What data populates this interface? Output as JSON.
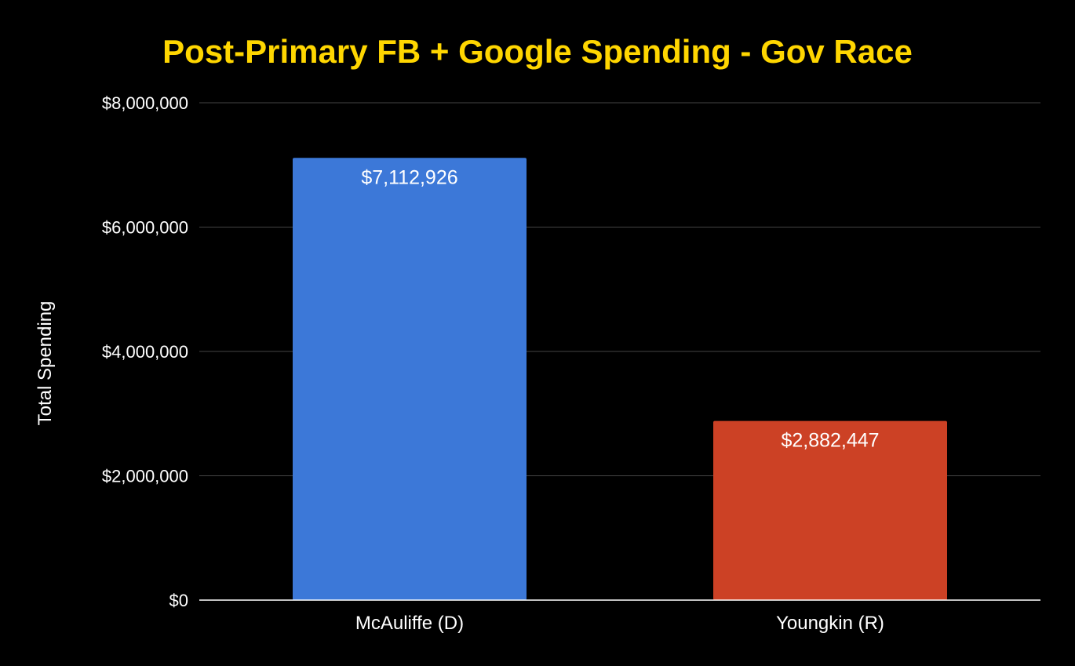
{
  "chart_data": {
    "type": "bar",
    "title": "Post-Primary FB + Google Spending - Gov Race",
    "xlabel": "",
    "ylabel": "Total Spending",
    "categories": [
      "McAuliffe (D)",
      "Youngkin (R)"
    ],
    "values": [
      7112926,
      2882447
    ],
    "data_labels": [
      "$7,112,926",
      "$2,882,447"
    ],
    "bar_colors": [
      "#3c78d8",
      "#cc4125"
    ],
    "ylim": [
      0,
      8000000
    ],
    "y_ticks": [
      0,
      2000000,
      4000000,
      6000000,
      8000000
    ],
    "y_tick_labels": [
      "$0",
      "$2,000,000",
      "$4,000,000",
      "$6,000,000",
      "$8,000,000"
    ],
    "grid": true,
    "legend": "none"
  },
  "colors": {
    "background": "#000000",
    "title": "#ffd600",
    "text": "#ffffff",
    "gridline": "#444444",
    "baseline": "#ffffff"
  }
}
